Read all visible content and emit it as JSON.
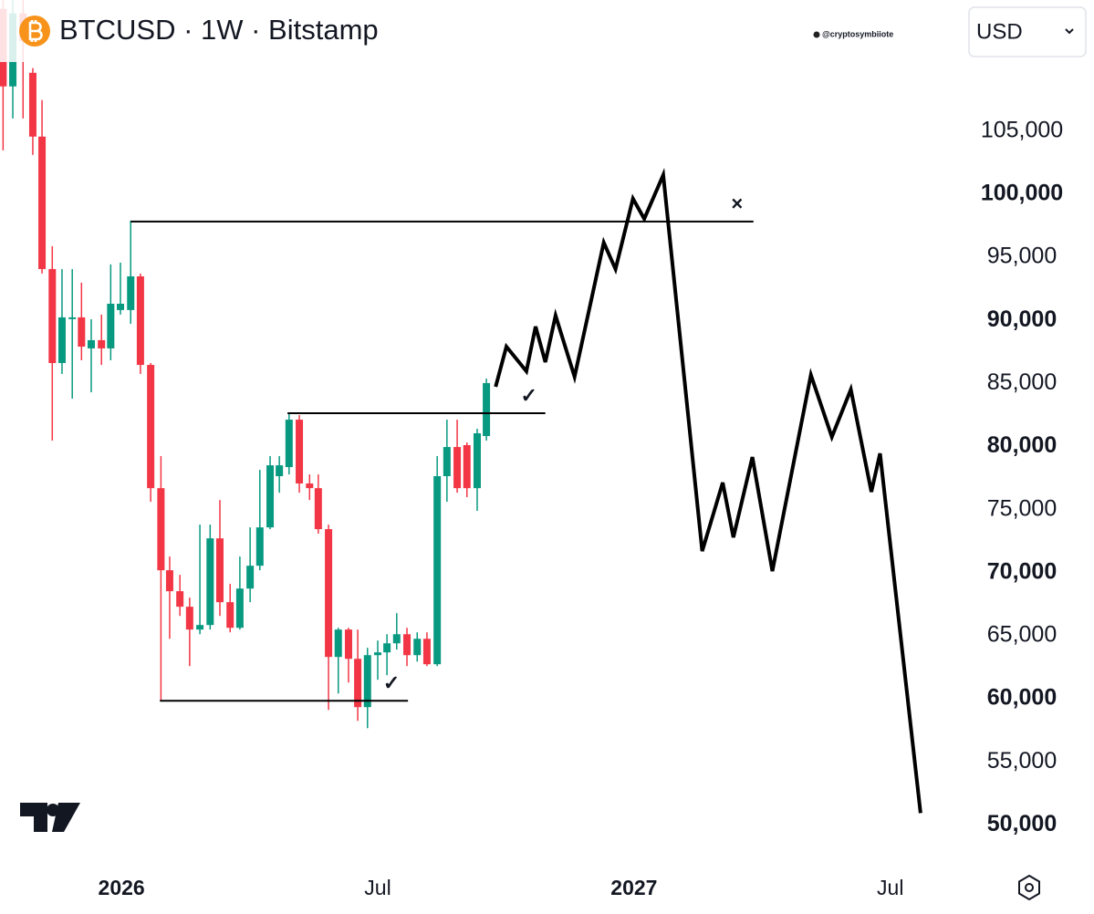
{
  "chart_data": {
    "type": "candlestick",
    "title": "BTCUSD · 1W · Bitstamp",
    "watermark": "@cryptosymbiiote",
    "currency": "USD",
    "xlim": [
      2025.763,
      2027.65
    ],
    "ylim": [
      46700,
      115400
    ],
    "xticks": [
      2026,
      {
        "value": 2026.5,
        "label": "Jul"
      },
      2027,
      {
        "value": 2027.5,
        "label": "Jul"
      }
    ],
    "yticks": [
      {
        "value": 50000,
        "label": "50,000"
      },
      {
        "value": 55000,
        "label": "55,000"
      },
      {
        "value": 60000,
        "label": "60,000"
      },
      {
        "value": 65000,
        "label": "65,000"
      },
      {
        "value": 70000,
        "label": "70,000"
      },
      {
        "value": 75000,
        "label": "75,000"
      },
      {
        "value": 80000,
        "label": "80,000"
      },
      {
        "value": 85000,
        "label": "85,000"
      },
      {
        "value": 90000,
        "label": "90,000"
      },
      {
        "value": 95000,
        "label": "95,000"
      },
      {
        "value": 100000,
        "label": "100,000"
      },
      {
        "value": 105000,
        "label": "105,000"
      }
    ],
    "up_color": "#089981",
    "down_color": "#f23645",
    "candles": {
      "x": [
        2025.769,
        2025.788,
        2025.808,
        2025.827,
        2025.845,
        2025.865,
        2025.884,
        2025.904,
        2025.922,
        2025.941,
        2025.961,
        2025.979,
        2025.998,
        2026.018,
        2026.037,
        2026.057,
        2026.077,
        2026.094,
        2026.114,
        2026.133,
        2026.153,
        2026.173,
        2026.192,
        2026.212,
        2026.231,
        2026.251,
        2026.27,
        2026.29,
        2026.308,
        2026.327,
        2026.347,
        2026.367,
        2026.384,
        2026.404,
        2026.423,
        2026.443,
        2026.461,
        2026.48,
        2026.5,
        2026.518,
        2026.537,
        2026.557,
        2026.577,
        2026.596,
        2026.616,
        2026.635,
        2026.655,
        2026.674,
        2026.694,
        2026.712
      ],
      "open": [
        114700,
        108550,
        114340,
        109630,
        104570,
        94070,
        86620,
        90100,
        90240,
        87780,
        88430,
        87780,
        90820,
        90820,
        93490,
        86470,
        76700,
        70190,
        68530,
        67300,
        65490,
        65850,
        72720,
        67660,
        65630,
        68740,
        70550,
        73590,
        77650,
        78370,
        82130,
        77070,
        76700,
        73450,
        63320,
        65490,
        63170,
        59340,
        63460,
        63680,
        64400,
        65120,
        63460,
        64760,
        62740,
        77650,
        79960,
        80110,
        76700,
        80830
      ],
      "high": [
        115420,
        115420,
        115420,
        110000,
        107460,
        95880,
        94070,
        94070,
        92990,
        90090,
        90460,
        94440,
        94580,
        97910,
        93710,
        86620,
        79240,
        71280,
        69830,
        68020,
        73810,
        73810,
        75760,
        69110,
        71280,
        73590,
        78150,
        79240,
        79240,
        82710,
        82490,
        77790,
        77790,
        73810,
        65630,
        65630,
        65490,
        64040,
        64620,
        65120,
        66790,
        65630,
        65270,
        65270,
        79240,
        82130,
        82130,
        80320,
        81410,
        85390
      ],
      "low": [
        103480,
        106010,
        106010,
        103120,
        93710,
        80470,
        85750,
        83800,
        86840,
        84300,
        86470,
        86840,
        90460,
        89730,
        85750,
        75620,
        59840,
        64760,
        66570,
        62590,
        65120,
        65490,
        66570,
        65270,
        65490,
        67660,
        70190,
        73450,
        76340,
        77790,
        76340,
        75760,
        73090,
        59120,
        60420,
        61290,
        58250,
        57670,
        61510,
        61870,
        63900,
        62590,
        62950,
        62590,
        62590,
        75620,
        76340,
        75980,
        74900,
        80470
      ],
      "close": [
        108550,
        114340,
        112160,
        104570,
        94070,
        86620,
        90240,
        90240,
        87920,
        88430,
        87780,
        91320,
        91320,
        93490,
        86470,
        76700,
        70190,
        68530,
        67300,
        65490,
        65850,
        72720,
        67660,
        65630,
        68740,
        70550,
        73590,
        78510,
        78510,
        82130,
        77070,
        76700,
        73450,
        63320,
        65490,
        63170,
        59340,
        63460,
        63680,
        64400,
        65120,
        63460,
        64760,
        62740,
        77650,
        79960,
        76700,
        76700,
        81050,
        85030
      ]
    },
    "projection": {
      "color": "#000000",
      "x": [
        2026.73,
        2026.751,
        2026.79,
        2026.808,
        2026.827,
        2026.847,
        2026.884,
        2026.941,
        2026.964,
        2026.998,
        2027.02,
        2027.057,
        2027.133,
        2027.173,
        2027.194,
        2027.231,
        2027.27,
        2027.345,
        2027.386,
        2027.423,
        2027.463,
        2027.48,
        2027.559
      ],
      "values": [
        84740,
        87920,
        85970,
        89510,
        86690,
        90380,
        85530,
        96170,
        94070,
        99650,
        98050,
        101530,
        71710,
        77140,
        72800,
        79160,
        70120,
        85680,
        80760,
        84520,
        76410,
        79450,
        50940
      ]
    },
    "levels": [
      {
        "value": 97840,
        "x": [
          2026.018,
          2027.233
        ],
        "marker": "×"
      },
      {
        "value": 82640,
        "x": [
          2026.324,
          2026.827
        ],
        "marker": "✓"
      },
      {
        "value": 59840,
        "x": [
          2026.075,
          2026.559
        ],
        "marker": "✓"
      }
    ]
  }
}
